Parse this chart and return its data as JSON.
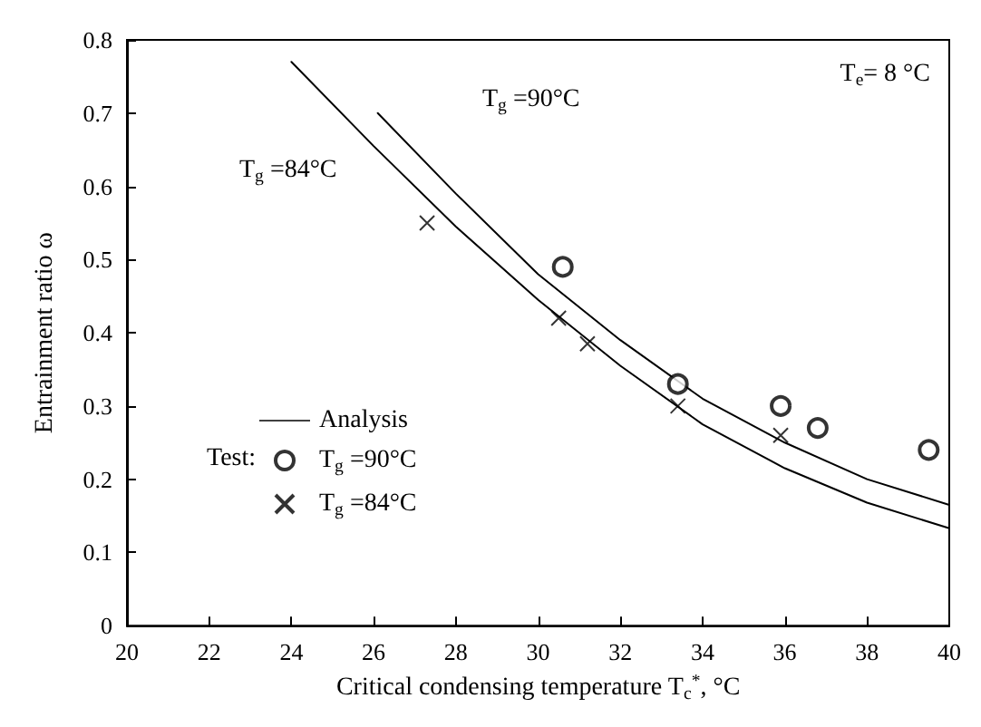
{
  "chart_data": {
    "type": "line",
    "xlabel": "Critical condensing temperature T$_{c}$$^{*}$, °C",
    "ylabel": "Entrainment ratio ω",
    "xlim": [
      20,
      40
    ],
    "xticks": [
      20,
      22,
      24,
      26,
      28,
      30,
      32,
      34,
      36,
      38,
      40
    ],
    "ylim": [
      0,
      0.8
    ],
    "yticks": [
      0,
      0.1,
      0.2,
      0.3,
      0.4,
      0.5,
      0.6,
      0.7,
      0.8
    ],
    "grid": false,
    "legend": "left",
    "series": [
      {
        "name": "Analysis",
        "color": "#000000",
        "marker": "none",
        "line_style": "solid",
        "x": [
          26.1,
          28,
          30,
          32,
          34,
          36,
          38,
          40
        ],
        "values": [
          0.7,
          0.59,
          0.48,
          0.39,
          0.31,
          0.25,
          0.2,
          0.165
        ]
      },
      {
        "color": "#000000",
        "marker": "none",
        "line_style": "solid",
        "x": [
          24,
          26,
          28,
          30,
          32,
          34,
          36,
          38,
          40
        ],
        "values": [
          0.77,
          0.655,
          0.545,
          0.445,
          0.355,
          0.275,
          0.215,
          0.168,
          0.133
        ]
      },
      {
        "name": "T$_{g}$ =90°C",
        "type": "scatter",
        "color": "#000000",
        "marker": "circle",
        "x": [
          30.6,
          33.4,
          35.9,
          36.8,
          39.5
        ],
        "values": [
          0.49,
          0.33,
          0.3,
          0.27,
          0.24
        ]
      },
      {
        "name": "T$_{g}$ =84°C",
        "type": "scatter",
        "color": "#000000",
        "marker": "cross",
        "x": [
          27.3,
          30.5,
          31.2,
          33.4,
          35.9
        ],
        "values": [
          0.55,
          0.42,
          0.385,
          0.3,
          0.26
        ]
      }
    ],
    "annotations": [
      "T$_{g}$ =90°C",
      "T$_{g}$ =84°C",
      "T$_{e}$= 8 °C",
      "Test:"
    ]
  }
}
